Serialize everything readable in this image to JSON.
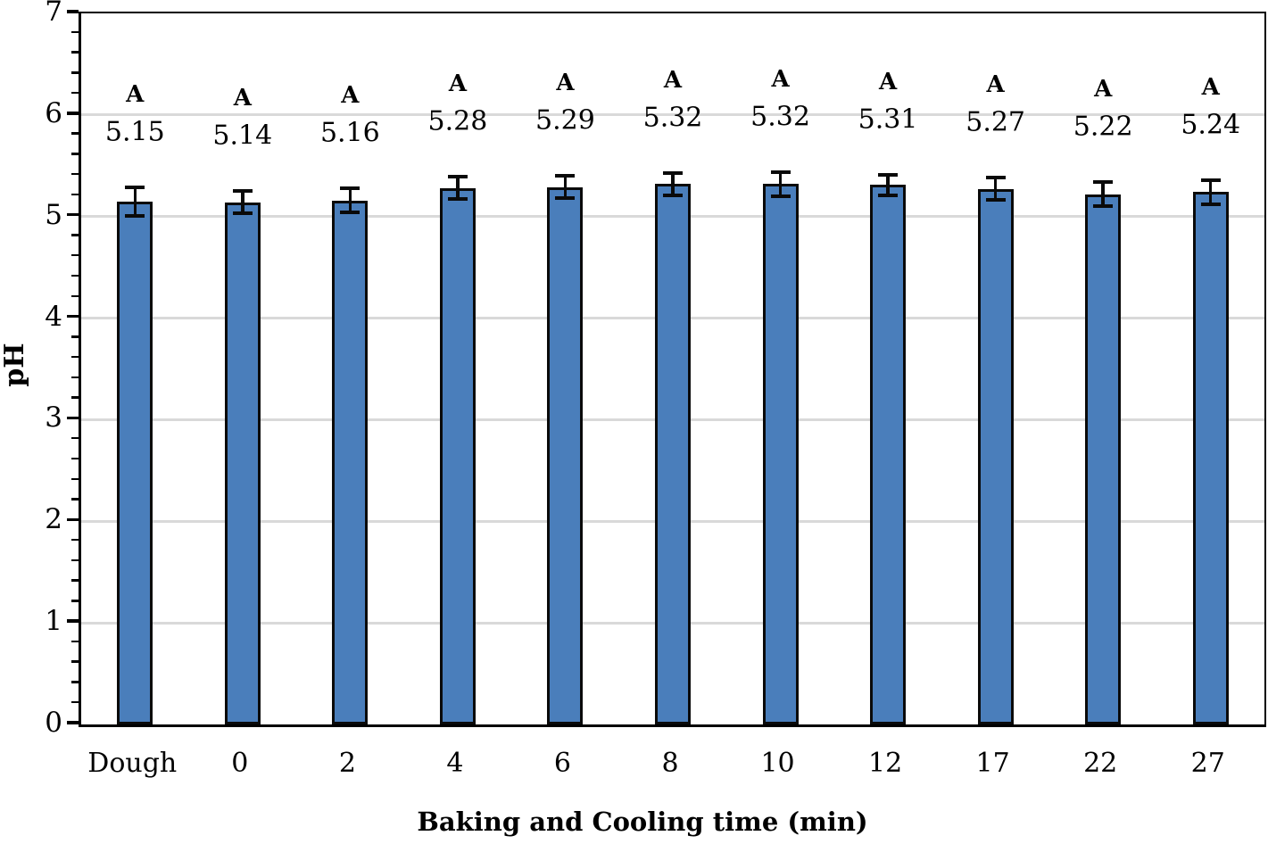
{
  "chart_data": {
    "type": "bar",
    "title": "",
    "xlabel": "Baking and Cooling time (min)",
    "ylabel": "pH",
    "categories": [
      "Dough",
      "0",
      "2",
      "4",
      "6",
      "8",
      "10",
      "12",
      "17",
      "22",
      "27"
    ],
    "values": [
      5.15,
      5.14,
      5.16,
      5.28,
      5.29,
      5.32,
      5.32,
      5.31,
      5.27,
      5.22,
      5.24
    ],
    "value_labels": [
      "5.15",
      "5.14",
      "5.16",
      "5.28",
      "5.29",
      "5.32",
      "5.32",
      "5.31",
      "5.27",
      "5.22",
      "5.24"
    ],
    "significance_letters": [
      "A",
      "A",
      "A",
      "A",
      "A",
      "A",
      "A",
      "A",
      "A",
      "A",
      "A"
    ],
    "errors": [
      0.14,
      0.11,
      0.12,
      0.11,
      0.11,
      0.11,
      0.12,
      0.1,
      0.11,
      0.12,
      0.12
    ],
    "ylim": [
      0,
      7
    ],
    "y_major_step": 1,
    "y_minor_step": 0.2,
    "y_tick_labels": [
      "0",
      "1",
      "2",
      "3",
      "4",
      "5",
      "6",
      "7"
    ],
    "grid": "horizontal-major",
    "legend": "none",
    "colors": {
      "bar_fill": "#4A7EBB",
      "bar_border": "#0a0a0a",
      "gridline": "#D9D9D9",
      "axis": "#000000",
      "error_bar": "#0a0a0a",
      "background": "#FFFFFF",
      "text": "#000000"
    }
  }
}
